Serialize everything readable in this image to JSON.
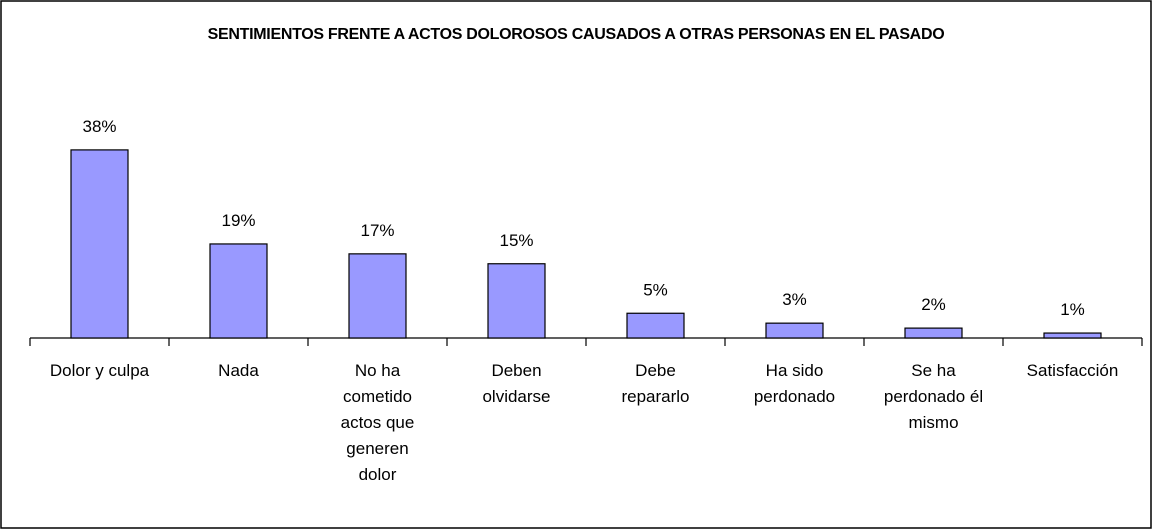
{
  "chart_data": {
    "type": "bar",
    "title": "SENTIMIENTOS FRENTE A ACTOS DOLOROSOS CAUSADOS A OTRAS PERSONAS EN EL PASADO",
    "categories": [
      "Dolor y culpa",
      "Nada",
      "No ha cometido actos que generen dolor",
      "Deben olvidarse",
      "Debe repararlo",
      "Ha sido perdonado",
      "Se ha perdonado él mismo",
      "Satisfacción"
    ],
    "values": [
      38,
      19,
      17,
      15,
      5,
      3,
      2,
      1
    ],
    "value_labels": [
      "38%",
      "19%",
      "17%",
      "15%",
      "5%",
      "3%",
      "2%",
      "1%"
    ],
    "color": "#9999ff"
  }
}
